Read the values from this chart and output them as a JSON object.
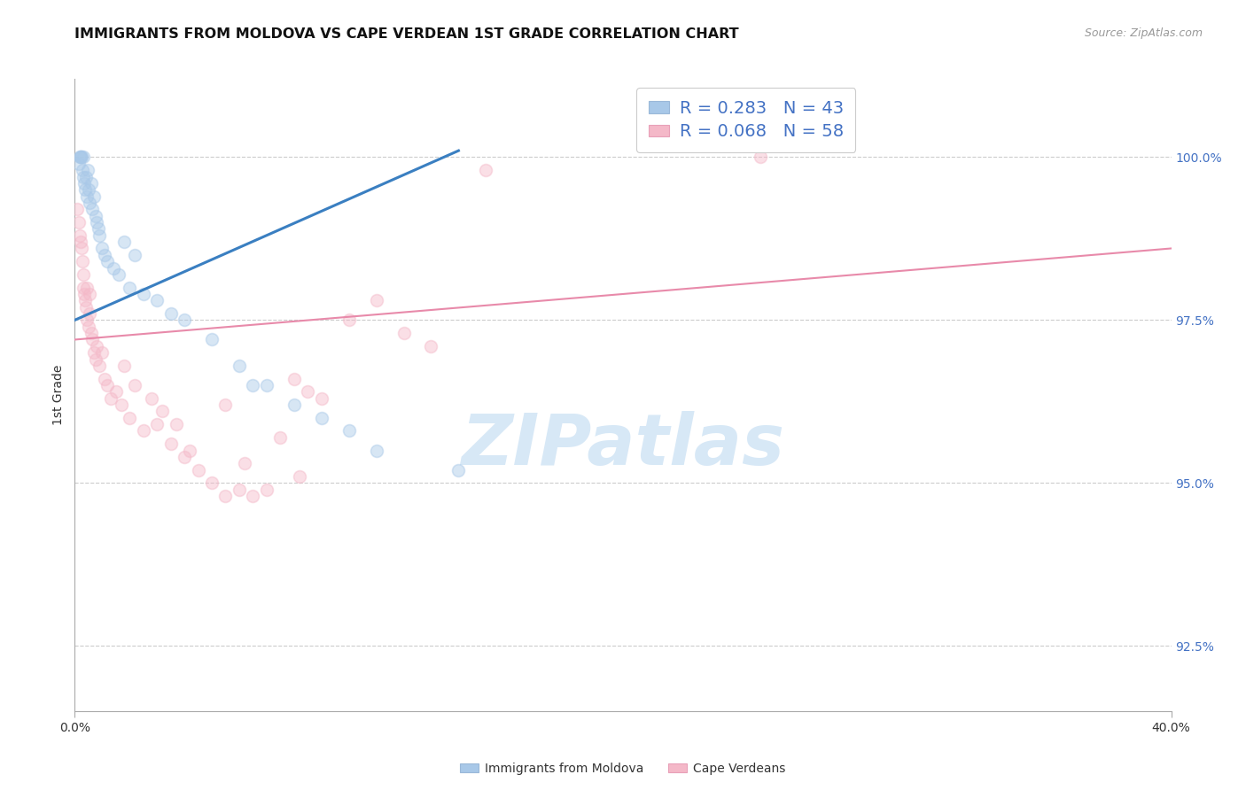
{
  "title": "IMMIGRANTS FROM MOLDOVA VS CAPE VERDEAN 1ST GRADE CORRELATION CHART",
  "source": "Source: ZipAtlas.com",
  "ylabel": "1st Grade",
  "xlim": [
    0.0,
    40.0
  ],
  "ylim": [
    91.5,
    101.2
  ],
  "ytick_values": [
    92.5,
    95.0,
    97.5,
    100.0
  ],
  "legend_entries": [
    {
      "label": "R = 0.283   N = 43",
      "color": "#a8c8e8"
    },
    {
      "label": "R = 0.068   N = 58",
      "color": "#f4b8c8"
    }
  ],
  "blue_scatter_x": [
    0.15,
    0.18,
    0.2,
    0.22,
    0.25,
    0.28,
    0.3,
    0.32,
    0.35,
    0.38,
    0.4,
    0.45,
    0.48,
    0.5,
    0.55,
    0.6,
    0.65,
    0.7,
    0.75,
    0.8,
    0.85,
    0.9,
    1.0,
    1.1,
    1.2,
    1.4,
    1.6,
    2.0,
    2.5,
    3.0,
    3.5,
    4.0,
    5.0,
    6.0,
    6.5,
    7.0,
    8.0,
    9.0,
    10.0,
    11.0,
    14.0,
    2.2,
    1.8
  ],
  "blue_scatter_y": [
    99.9,
    100.0,
    100.0,
    100.0,
    100.0,
    99.8,
    99.7,
    100.0,
    99.6,
    99.5,
    99.7,
    99.4,
    99.8,
    99.5,
    99.3,
    99.6,
    99.2,
    99.4,
    99.1,
    99.0,
    98.9,
    98.8,
    98.6,
    98.5,
    98.4,
    98.3,
    98.2,
    98.0,
    97.9,
    97.8,
    97.6,
    97.5,
    97.2,
    96.8,
    96.5,
    96.5,
    96.2,
    96.0,
    95.8,
    95.5,
    95.2,
    98.5,
    98.7
  ],
  "pink_scatter_x": [
    0.1,
    0.15,
    0.18,
    0.2,
    0.25,
    0.28,
    0.3,
    0.32,
    0.35,
    0.38,
    0.4,
    0.45,
    0.5,
    0.55,
    0.6,
    0.65,
    0.7,
    0.75,
    0.8,
    0.9,
    1.0,
    1.1,
    1.2,
    1.3,
    1.5,
    1.7,
    2.0,
    2.5,
    3.0,
    3.5,
    4.0,
    4.5,
    5.0,
    5.5,
    6.0,
    6.5,
    7.0,
    8.0,
    8.5,
    9.0,
    10.0,
    11.0,
    12.0,
    13.0,
    15.0,
    0.45,
    0.55,
    1.8,
    2.2,
    2.8,
    3.2,
    3.7,
    4.2,
    5.5,
    6.2,
    7.5,
    8.2,
    25.0
  ],
  "pink_scatter_y": [
    99.2,
    99.0,
    98.8,
    98.7,
    98.6,
    98.4,
    98.2,
    98.0,
    97.9,
    97.8,
    97.7,
    97.5,
    97.4,
    97.6,
    97.3,
    97.2,
    97.0,
    96.9,
    97.1,
    96.8,
    97.0,
    96.6,
    96.5,
    96.3,
    96.4,
    96.2,
    96.0,
    95.8,
    95.9,
    95.6,
    95.4,
    95.2,
    95.0,
    94.8,
    94.9,
    94.8,
    94.9,
    96.6,
    96.4,
    96.3,
    97.5,
    97.8,
    97.3,
    97.1,
    99.8,
    98.0,
    97.9,
    96.8,
    96.5,
    96.3,
    96.1,
    95.9,
    95.5,
    96.2,
    95.3,
    95.7,
    95.1,
    100.0
  ],
  "blue_line_x": [
    0.0,
    14.0
  ],
  "blue_line_y": [
    97.5,
    100.1
  ],
  "pink_line_x": [
    0.0,
    40.0
  ],
  "pink_line_y": [
    97.2,
    98.6
  ],
  "scatter_size": 100,
  "scatter_alpha": 0.45,
  "blue_color": "#a8c8e8",
  "pink_color": "#f4b8c8",
  "blue_line_color": "#3a7fc1",
  "pink_line_color": "#e88aaa",
  "grid_color": "#cccccc",
  "background_color": "#ffffff",
  "title_fontsize": 11.5,
  "axis_label_fontsize": 10,
  "tick_fontsize": 10,
  "legend_fontsize": 14,
  "watermark_text": "ZIPatlas",
  "watermark_color": "#d0e4f5",
  "bottom_legend_label1": "Immigrants from Moldova",
  "bottom_legend_label2": "Cape Verdeans"
}
